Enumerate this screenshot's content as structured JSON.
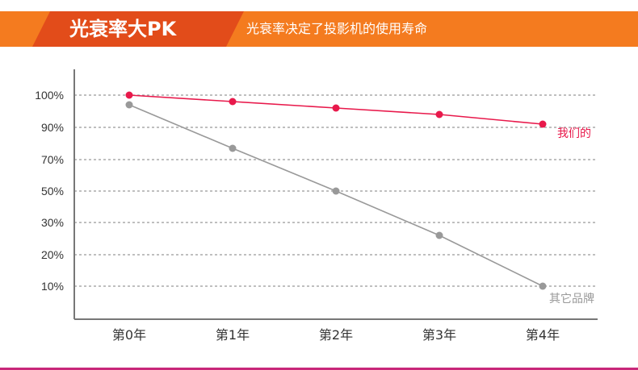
{
  "header": {
    "title": "光衰率大PK",
    "subtitle": "光衰率决定了投影机的使用寿命"
  },
  "colors": {
    "header_bar": "#f47b1f",
    "title_tab": "#e24c1a",
    "ours": "#e8194b",
    "others": "#999999",
    "grid": "#999999",
    "footer": "#c8287a"
  },
  "chart_data": {
    "type": "line",
    "categories": [
      "第0年",
      "第1年",
      "第2年",
      "第3年",
      "第4年"
    ],
    "y_ticks": [
      "100%",
      "90%",
      "70%",
      "50%",
      "30%",
      "20%",
      "10%"
    ],
    "y_tick_values": [
      100,
      90,
      70,
      50,
      30,
      20,
      10
    ],
    "grid": "dashed horizontal",
    "series": [
      {
        "name": "我们的",
        "color": "#e8194b",
        "values": [
          100,
          98,
          96,
          94,
          91
        ]
      },
      {
        "name": "其它品牌",
        "color": "#999999",
        "values": [
          97,
          77,
          50,
          26,
          10
        ]
      }
    ]
  }
}
